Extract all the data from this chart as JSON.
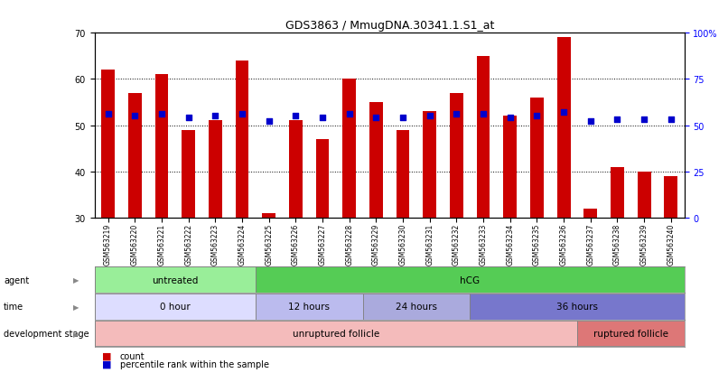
{
  "title": "GDS3863 / MmugDNA.30341.1.S1_at",
  "samples": [
    "GSM563219",
    "GSM563220",
    "GSM563221",
    "GSM563222",
    "GSM563223",
    "GSM563224",
    "GSM563225",
    "GSM563226",
    "GSM563227",
    "GSM563228",
    "GSM563229",
    "GSM563230",
    "GSM563231",
    "GSM563232",
    "GSM563233",
    "GSM563234",
    "GSM563235",
    "GSM563236",
    "GSM563237",
    "GSM563238",
    "GSM563239",
    "GSM563240"
  ],
  "counts": [
    62,
    57,
    61,
    49,
    51,
    64,
    31,
    51,
    47,
    60,
    55,
    49,
    53,
    57,
    65,
    52,
    56,
    69,
    32,
    41,
    40,
    39
  ],
  "percentiles": [
    56,
    55,
    56,
    54,
    55,
    56,
    52,
    55,
    54,
    56,
    54,
    54,
    55,
    56,
    56,
    54,
    55,
    57,
    52,
    53,
    53,
    53
  ],
  "ymin": 30,
  "ymax": 70,
  "ylim_ticks": [
    30,
    40,
    50,
    60,
    70
  ],
  "right_yticks": [
    0,
    25,
    50,
    75,
    100
  ],
  "bar_color": "#cc0000",
  "dot_color": "#0000cc",
  "agent_segments": [
    {
      "text": "untreated",
      "start": 0,
      "end": 6,
      "color": "#99ee99"
    },
    {
      "text": "hCG",
      "start": 6,
      "end": 22,
      "color": "#55cc55"
    }
  ],
  "time_segments": [
    {
      "text": "0 hour",
      "start": 0,
      "end": 6,
      "color": "#ddddff"
    },
    {
      "text": "12 hours",
      "start": 6,
      "end": 10,
      "color": "#bbbbee"
    },
    {
      "text": "24 hours",
      "start": 10,
      "end": 14,
      "color": "#aaaadd"
    },
    {
      "text": "36 hours",
      "start": 14,
      "end": 22,
      "color": "#7777cc"
    }
  ],
  "dev_segments": [
    {
      "text": "unruptured follicle",
      "start": 0,
      "end": 18,
      "color": "#f4bbbb"
    },
    {
      "text": "ruptured follicle",
      "start": 18,
      "end": 22,
      "color": "#dd7777"
    }
  ],
  "row_labels": [
    "agent",
    "time",
    "development stage"
  ],
  "legend_items": [
    {
      "label": "count",
      "color": "#cc0000"
    },
    {
      "label": "percentile rank within the sample",
      "color": "#0000cc"
    }
  ]
}
